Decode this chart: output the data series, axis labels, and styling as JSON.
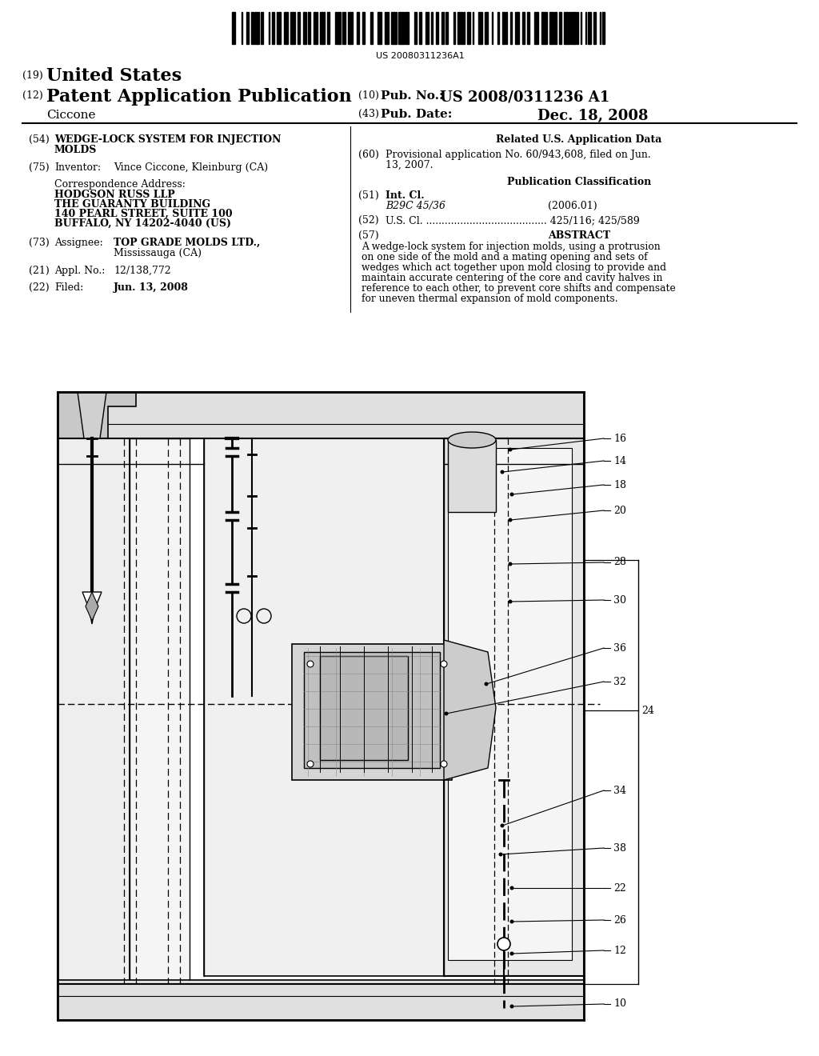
{
  "background_color": "#ffffff",
  "barcode_text": "US 20080311236A1",
  "title_19": "(19) United States",
  "title_12": "(12) Patent Application Publication",
  "pub_no_label": "(10) Pub. No.:",
  "pub_no_value": "US 2008/0311236 A1",
  "pub_date_label": "(43) Pub. Date:",
  "pub_date_value": "Dec. 18, 2008",
  "inventor_name": "Ciccone",
  "field_54_label": "(54)",
  "field_54_title": "WEDGE-LOCK SYSTEM FOR INJECTION\nMOLDS",
  "field_75_label": "(75)",
  "field_75_name": "Inventor:",
  "field_75_value": "Vince Ciccone, Kleinburg (CA)",
  "correspondence_label": "Correspondence Address:",
  "correspondence_lines": [
    "HODGSON RUSS LLP",
    "THE GUARANTY BUILDING",
    "140 PEARL STREET, SUITE 100",
    "BUFFALO, NY 14202-4040 (US)"
  ],
  "field_73_label": "(73)",
  "field_73_name": "Assignee:",
  "field_73_value": "TOP GRADE MOLDS LTD.,",
  "field_73_value2": "Mississauga (CA)",
  "field_21_label": "(21)",
  "field_21_name": "Appl. No.:",
  "field_21_value": "12/138,772",
  "field_22_label": "(22)",
  "field_22_name": "Filed:",
  "field_22_value": "Jun. 13, 2008",
  "related_title": "Related U.S. Application Data",
  "field_60_label": "(60)",
  "field_60_text": "Provisional application No. 60/943,608, filed on Jun.\n13, 2007.",
  "pub_class_title": "Publication Classification",
  "field_51_label": "(51)",
  "field_51_name": "Int. Cl.",
  "field_51_class": "B29C 45/36",
  "field_51_year": "(2006.01)",
  "field_52_label": "(52)",
  "field_52_text": "U.S. Cl. ....................................... 425/116; 425/589",
  "field_57_label": "(57)",
  "field_57_title": "ABSTRACT",
  "abstract_text": "A wedge-lock system for injection molds, using a protrusion on one side of the mold and a mating opening and sets of wedges which act together upon mold closing to provide and maintain accurate centering of the core and cavity halves in reference to each other, to prevent core shifts and compensate for uneven thermal expansion of mold components.",
  "ref_numbers": [
    "16",
    "14",
    "18",
    "20",
    "28",
    "30",
    "36",
    "32",
    "24",
    "34",
    "38",
    "22",
    "26",
    "12",
    "10"
  ],
  "diagram_border_color": "#000000",
  "line_color": "#333333"
}
